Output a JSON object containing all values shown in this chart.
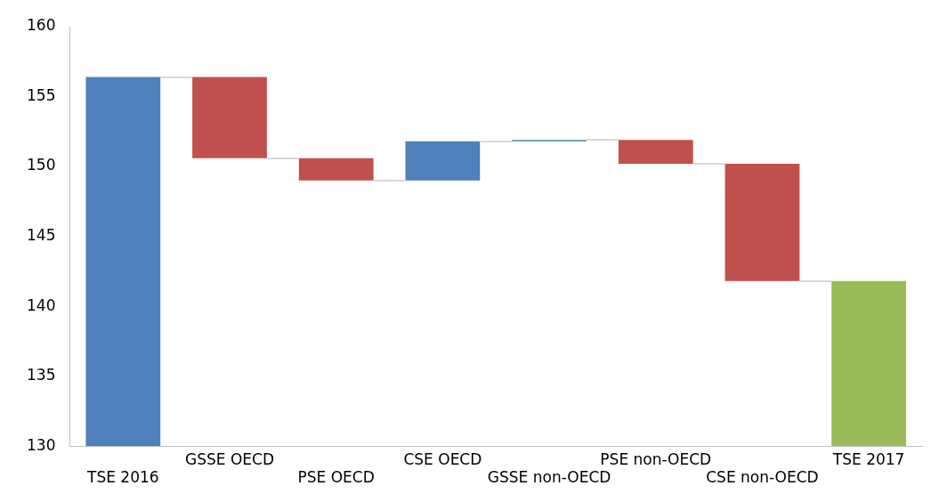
{
  "chart_data": {
    "type": "bar",
    "categories": [
      "TSE 2016",
      "GSSE OECD",
      "PSE OECD",
      "CSE OECD",
      "GSSE non-OECD",
      "PSE non-OECD",
      "CSE non-OECD",
      "TSE 2017"
    ],
    "base": [
      130,
      156.4,
      150.6,
      149.0,
      151.8,
      151.9,
      150.2,
      130
    ],
    "values": [
      26.4,
      -5.8,
      -1.6,
      2.8,
      0.1,
      -1.7,
      -8.4,
      11.8
    ],
    "colors": [
      "#4f81bd",
      "#c0504d",
      "#c0504d",
      "#4f81bd",
      "#4f81bd",
      "#c0504d",
      "#c0504d",
      "#9bbb59"
    ],
    "ylim": [
      130,
      160
    ],
    "yticks": [
      130,
      135,
      140,
      145,
      150,
      155,
      160
    ],
    "grid": false,
    "legend": false
  }
}
